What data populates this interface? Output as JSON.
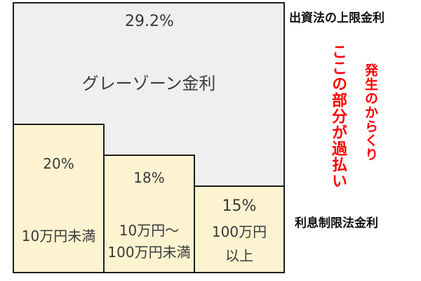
{
  "grey_zone": {
    "rate": "29.2%",
    "label": "グレーゾーン金利"
  },
  "tiers": [
    {
      "rate": "20%",
      "label": "10万円未満"
    },
    {
      "rate": "18%",
      "label": "10万円〜\n100万円未満"
    },
    {
      "rate": "15%",
      "label": "100万円\n以上"
    }
  ],
  "labels": {
    "upper_limit": "出資法の上限金利",
    "lower_limit": "利息制限法金利",
    "overpayment": "ここの部分が過払い",
    "mechanism": "発生のからくり"
  },
  "colors": {
    "grey_zone_fill": "#efeff1",
    "tier_fill": "#fdf3d0",
    "accent_red": "#ff0000",
    "border": "#1f1f1f"
  }
}
